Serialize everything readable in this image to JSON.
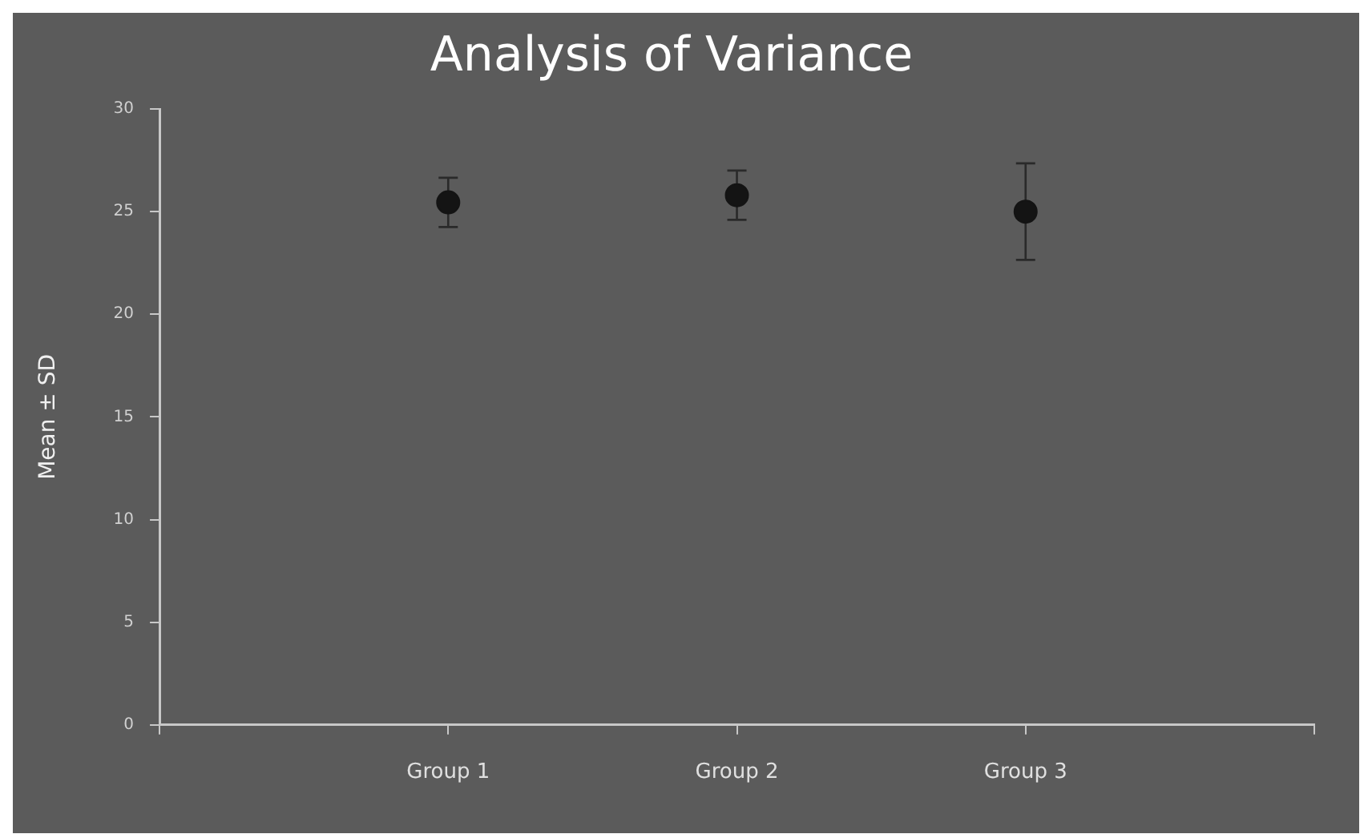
{
  "chart_data": {
    "type": "scatter",
    "title": "Analysis of Variance",
    "ylabel": "Mean ± SD",
    "categories": [
      null,
      "Group 1",
      "Group 2",
      "Group 3",
      null
    ],
    "series": [
      {
        "color": "#141414",
        "values": [
          null,
          25.45,
          25.8,
          25.0,
          null
        ],
        "errors": [
          null,
          1.2,
          1.2,
          2.35,
          null
        ]
      }
    ],
    "ylim": [
      0,
      30
    ],
    "yticks": [
      0,
      5,
      10,
      15,
      20,
      25,
      30
    ],
    "grid": false,
    "legend": false,
    "marker": "circle"
  }
}
